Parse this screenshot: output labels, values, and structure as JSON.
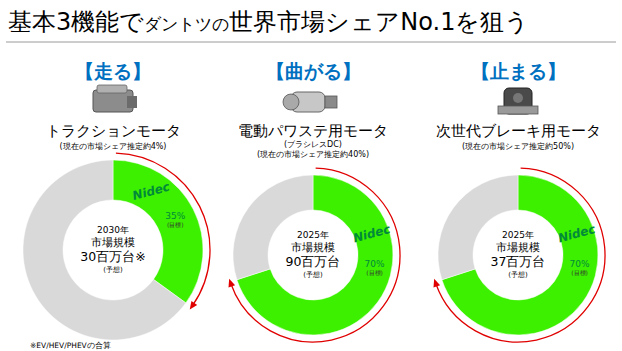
{
  "title": [
    "基本3機能で",
    "ダントツの",
    "世界市場シェアNo.1を狙う"
  ],
  "footnote": "※EV/HEV/PHEVの合算",
  "chart_data": [
    {
      "type": "pie",
      "header": "【走る】",
      "name": "トラクションモータ",
      "note": "(現在の市場シェア推定約4%)",
      "categories": [
        "Nidec",
        null
      ],
      "values": [
        35,
        65
      ],
      "value_labels": [
        "35%",
        null
      ],
      "data_labels": true,
      "annotation": "(目標)",
      "colors": [
        "#3cf000",
        "#d9d9d9"
      ],
      "center_text": [
        "2030年",
        "市場規模",
        "30百万台※",
        "(予想)"
      ]
    },
    {
      "type": "pie",
      "header": "【曲がる】",
      "name": "電動パワステ用モータ",
      "subtitle": "(ブラシレスDC)",
      "note": "(現在の市場シェア推定約40%)",
      "categories": [
        "Nidec",
        null
      ],
      "values": [
        70,
        30
      ],
      "value_labels": [
        "70%",
        null
      ],
      "data_labels": true,
      "annotation": "(目標)",
      "colors": [
        "#3cf000",
        "#d9d9d9"
      ],
      "center_text": [
        "2025年",
        "市場規模",
        "90百万台",
        "(予想)"
      ]
    },
    {
      "type": "pie",
      "header": "【止まる】",
      "name": "次世代ブレーキ用モータ",
      "note": "(現在の市場シェア推定約50%)",
      "categories": [
        "Nidec",
        null
      ],
      "values": [
        70,
        30
      ],
      "value_labels": [
        "70%",
        null
      ],
      "data_labels": true,
      "annotation": "(目標)",
      "colors": [
        "#3cf000",
        "#d9d9d9"
      ],
      "center_text": [
        "2025年",
        "市場規模",
        "37百万台",
        "(予想)"
      ]
    }
  ]
}
